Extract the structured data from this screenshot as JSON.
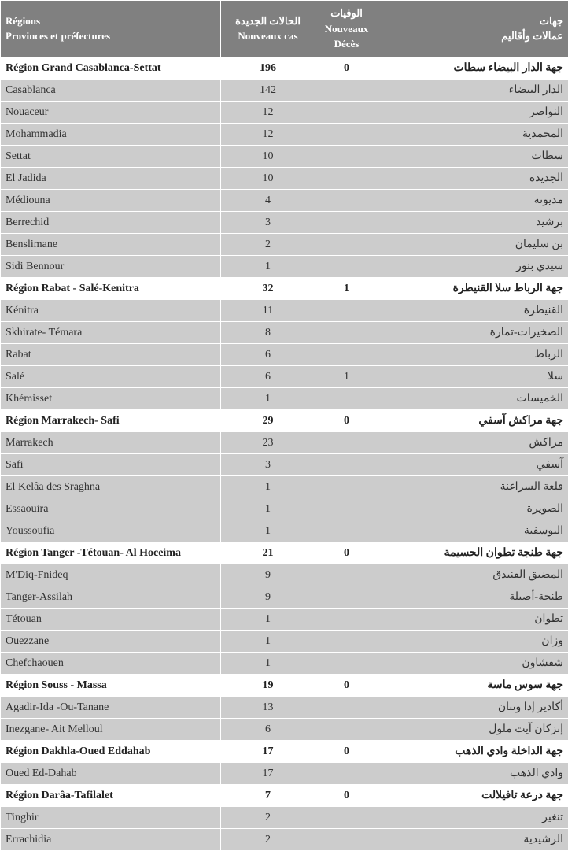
{
  "header": {
    "col1_fr_top": "Régions",
    "col1_fr_bot": "Provinces et préfectures",
    "col2_ar": "الحالات الجديدة",
    "col2_fr": "Nouveaux cas",
    "col3_ar": "الوفيات",
    "col3_fr_top": "Nouveaux",
    "col3_fr_bot": "Décès",
    "col4_ar_top": "جهات",
    "col4_ar_bot": "عمالات وأقاليم"
  },
  "rows": [
    {
      "type": "region",
      "fr": "Région Grand Casablanca-Settat",
      "cases": "196",
      "deaths": "0",
      "ar": "جهة الدار البيضاء سطات"
    },
    {
      "type": "data",
      "fr": "Casablanca",
      "cases": "142",
      "deaths": "",
      "ar": "الدار البيضاء"
    },
    {
      "type": "data",
      "fr": "Nouaceur",
      "cases": "12",
      "deaths": "",
      "ar": "النواصر"
    },
    {
      "type": "data",
      "fr": "Mohammadia",
      "cases": "12",
      "deaths": "",
      "ar": "المحمدية"
    },
    {
      "type": "data",
      "fr": "Settat",
      "cases": "10",
      "deaths": "",
      "ar": "سطات"
    },
    {
      "type": "data",
      "fr": "El Jadida",
      "cases": "10",
      "deaths": "",
      "ar": "الجديدة"
    },
    {
      "type": "data",
      "fr": "Médiouna",
      "cases": "4",
      "deaths": "",
      "ar": "مديونة"
    },
    {
      "type": "data",
      "fr": "Berrechid",
      "cases": "3",
      "deaths": "",
      "ar": "برشيد"
    },
    {
      "type": "data",
      "fr": "Benslimane",
      "cases": "2",
      "deaths": "",
      "ar": "بن سليمان"
    },
    {
      "type": "data",
      "fr": "Sidi Bennour",
      "cases": "1",
      "deaths": "",
      "ar": "سيدي بنور"
    },
    {
      "type": "region",
      "fr": "Région Rabat - Salé-Kenitra",
      "cases": "32",
      "deaths": "1",
      "ar": "جهة الرباط سلا القنيطرة"
    },
    {
      "type": "data",
      "fr": "Kénitra",
      "cases": "11",
      "deaths": "",
      "ar": "القنيطرة"
    },
    {
      "type": "data",
      "fr": "Skhirate- Témara",
      "cases": "8",
      "deaths": "",
      "ar": "الصخيرات-تمارة"
    },
    {
      "type": "data",
      "fr": "Rabat",
      "cases": "6",
      "deaths": "",
      "ar": "الرباط"
    },
    {
      "type": "data",
      "fr": "Salé",
      "cases": "6",
      "deaths": "1",
      "ar": "سلا"
    },
    {
      "type": "data",
      "fr": "Khémisset",
      "cases": "1",
      "deaths": "",
      "ar": "الخميسات"
    },
    {
      "type": "region",
      "fr": "Région Marrakech- Safi",
      "cases": "29",
      "deaths": "0",
      "ar": "جهة مراكش آسفي"
    },
    {
      "type": "data",
      "fr": "Marrakech",
      "cases": "23",
      "deaths": "",
      "ar": "مراكش"
    },
    {
      "type": "data",
      "fr": "Safi",
      "cases": "3",
      "deaths": "",
      "ar": "آسفي"
    },
    {
      "type": "data",
      "fr": "El Kelâa des  Sraghna",
      "cases": "1",
      "deaths": "",
      "ar": "قلعة السراغنة"
    },
    {
      "type": "data",
      "fr": "Essaouira",
      "cases": "1",
      "deaths": "",
      "ar": "الصويرة"
    },
    {
      "type": "data",
      "fr": "Youssoufia",
      "cases": "1",
      "deaths": "",
      "ar": "اليوسفية"
    },
    {
      "type": "region",
      "fr": "Région Tanger -Tétouan- Al Hoceima",
      "cases": "21",
      "deaths": "0",
      "ar": "جهة طنجة تطوان الحسيمة"
    },
    {
      "type": "data",
      "fr": "M'Diq-Fnideq",
      "cases": "9",
      "deaths": "",
      "ar": "المضيق الفنيدق"
    },
    {
      "type": "data",
      "fr": "Tanger-Assilah",
      "cases": "9",
      "deaths": "",
      "ar": "طنجة-أصيلة"
    },
    {
      "type": "data",
      "fr": "Tétouan",
      "cases": "1",
      "deaths": "",
      "ar": "تطوان"
    },
    {
      "type": "data",
      "fr": "Ouezzane",
      "cases": "1",
      "deaths": "",
      "ar": "وزان"
    },
    {
      "type": "data",
      "fr": "Chefchaouen",
      "cases": "1",
      "deaths": "",
      "ar": "شفشاون"
    },
    {
      "type": "region",
      "fr": "Région Souss - Massa",
      "cases": "19",
      "deaths": "0",
      "ar": "جهة سوس ماسة"
    },
    {
      "type": "data",
      "fr": "Agadir-Ida -Ou-Tanane",
      "cases": "13",
      "deaths": "",
      "ar": "أكادير إدا وتنان"
    },
    {
      "type": "data",
      "fr": "Inezgane- Ait Melloul",
      "cases": "6",
      "deaths": "",
      "ar": "إنزكان آيت ملول"
    },
    {
      "type": "region",
      "fr": "Région Dakhla-Oued Eddahab",
      "cases": "17",
      "deaths": "0",
      "ar": "جهة الداخلة وادي الذهب"
    },
    {
      "type": "data",
      "fr": "Oued Ed-Dahab",
      "cases": "17",
      "deaths": "",
      "ar": "وادي الذهب"
    },
    {
      "type": "region",
      "fr": "Région Darâa-Tafilalet",
      "cases": "7",
      "deaths": "0",
      "ar": "جهة درعة تافيلالت"
    },
    {
      "type": "data",
      "fr": "Tinghir",
      "cases": "2",
      "deaths": "",
      "ar": "تنغير"
    },
    {
      "type": "data",
      "fr": "Errachidia",
      "cases": "2",
      "deaths": "",
      "ar": "الرشيدية"
    }
  ],
  "colors": {
    "header_bg": "#808080",
    "header_text": "#ffffff",
    "region_bg": "#ffffff",
    "data_bg": "#cccccc",
    "border": "#ffffff",
    "text": "#333333"
  }
}
